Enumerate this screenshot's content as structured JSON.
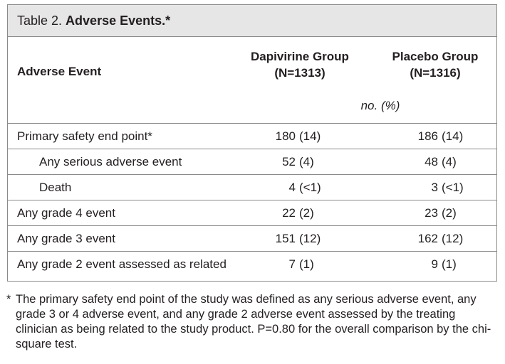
{
  "table": {
    "label": "Table 2.",
    "name": "Adverse Events.*",
    "columns": {
      "event": "Adverse Event",
      "dapivirine_name": "Dapivirine Group",
      "dapivirine_n": "(N=1313)",
      "placebo_name": "Placebo Group",
      "placebo_n": "(N=1316)"
    },
    "units": "no. (%)",
    "rows": [
      {
        "label": "Primary safety end point*",
        "level": 0,
        "dap_n": "180",
        "dap_pct": "(14)",
        "pla_n": "186",
        "pla_pct": "(14)"
      },
      {
        "label": "Any serious adverse event",
        "level": 1,
        "dap_n": "52",
        "dap_pct": "(4)",
        "pla_n": "48",
        "pla_pct": "(4)"
      },
      {
        "label": "Death",
        "level": 1,
        "dap_n": "4",
        "dap_pct": "(<1)",
        "pla_n": "3",
        "pla_pct": "(<1)"
      },
      {
        "label": "Any grade 4 event",
        "level": 0,
        "dap_n": "22",
        "dap_pct": "(2)",
        "pla_n": "23",
        "pla_pct": "(2)"
      },
      {
        "label": "Any grade 3 event",
        "level": 0,
        "dap_n": "151",
        "dap_pct": "(12)",
        "pla_n": "162",
        "pla_pct": "(12)"
      },
      {
        "label": "Any grade 2 event assessed as related",
        "level": 0,
        "dap_n": "7",
        "dap_pct": "(1)",
        "pla_n": "9",
        "pla_pct": "(1)"
      }
    ]
  },
  "footnote": {
    "mark": "*",
    "text": "The primary safety end point of the study was defined as any serious adverse event, any grade 3 or 4 adverse event, and any grade 2 adverse event assessed by the treating clinician as being related to the study product. P=0.80 for the overall comparison by the chi-square test."
  }
}
